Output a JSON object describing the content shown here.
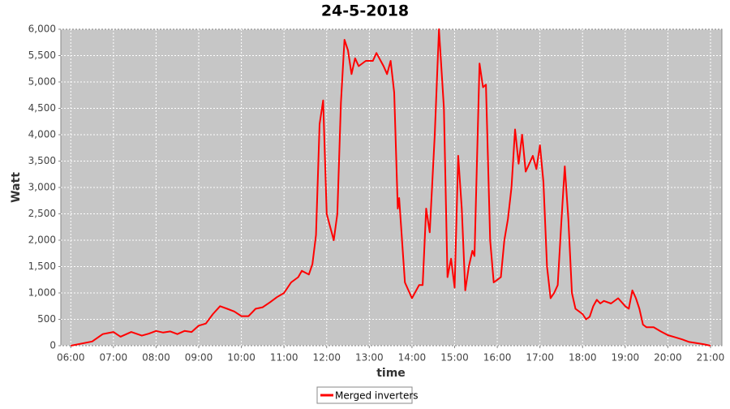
{
  "chart_data": {
    "type": "line",
    "title": "24-5-2018",
    "x_label": "time",
    "y_label": "Watt",
    "x": [
      "06:00",
      "06:30",
      "06:45",
      "07:00",
      "07:10",
      "07:25",
      "07:40",
      "07:50",
      "08:00",
      "08:10",
      "08:20",
      "08:30",
      "08:40",
      "08:50",
      "09:00",
      "09:10",
      "09:20",
      "09:30",
      "09:40",
      "09:50",
      "10:00",
      "10:10",
      "10:20",
      "10:30",
      "10:40",
      "10:50",
      "11:00",
      "11:10",
      "11:20",
      "11:25",
      "11:35",
      "11:40",
      "11:45",
      "11:50",
      "11:55",
      "12:00",
      "12:05",
      "12:10",
      "12:15",
      "12:20",
      "12:25",
      "12:30",
      "12:35",
      "12:40",
      "12:45",
      "12:55",
      "13:05",
      "13:10",
      "13:20",
      "13:25",
      "13:30",
      "13:35",
      "13:40",
      "13:42",
      "13:50",
      "14:00",
      "14:10",
      "14:15",
      "14:20",
      "14:25",
      "14:32",
      "14:38",
      "14:45",
      "14:50",
      "14:55",
      "15:00",
      "15:05",
      "15:10",
      "15:15",
      "15:20",
      "15:25",
      "15:28",
      "15:35",
      "15:40",
      "15:44",
      "15:50",
      "15:55",
      "16:00",
      "16:05",
      "16:10",
      "16:15",
      "16:20",
      "16:25",
      "16:30",
      "16:35",
      "16:40",
      "16:45",
      "16:50",
      "16:55",
      "17:00",
      "17:05",
      "17:10",
      "17:15",
      "17:20",
      "17:25",
      "17:30",
      "17:35",
      "17:40",
      "17:45",
      "17:50",
      "18:00",
      "18:05",
      "18:10",
      "18:15",
      "18:20",
      "18:25",
      "18:30",
      "18:40",
      "18:50",
      "19:00",
      "19:05",
      "19:10",
      "19:15",
      "19:20",
      "19:25",
      "19:30",
      "19:40",
      "19:50",
      "20:00",
      "20:10",
      "20:20",
      "20:30",
      "20:40",
      "20:50",
      "21:00"
    ],
    "series": [
      {
        "name": "Merged inverters",
        "color": "#ff0000",
        "values": [
          0,
          80,
          220,
          260,
          170,
          260,
          190,
          230,
          280,
          250,
          270,
          220,
          280,
          260,
          380,
          420,
          600,
          750,
          700,
          650,
          560,
          560,
          700,
          730,
          820,
          920,
          1000,
          1200,
          1300,
          1420,
          1350,
          1550,
          2100,
          4200,
          4650,
          2500,
          2250,
          2000,
          2500,
          4600,
          5800,
          5600,
          5150,
          5450,
          5300,
          5400,
          5400,
          5550,
          5300,
          5150,
          5400,
          4800,
          2600,
          2800,
          1200,
          900,
          1150,
          1150,
          2600,
          2150,
          4000,
          6000,
          4500,
          1300,
          1650,
          1100,
          3600,
          2600,
          1050,
          1500,
          1800,
          1700,
          5350,
          4900,
          4950,
          2000,
          1200,
          1250,
          1300,
          2000,
          2400,
          3000,
          4100,
          3450,
          4000,
          3300,
          3450,
          3600,
          3350,
          3800,
          3100,
          1500,
          900,
          1000,
          1150,
          2300,
          3400,
          2400,
          1000,
          700,
          600,
          500,
          550,
          750,
          870,
          800,
          850,
          800,
          900,
          750,
          700,
          1050,
          900,
          700,
          400,
          350,
          350,
          270,
          200,
          160,
          120,
          70,
          50,
          30,
          0
        ]
      }
    ],
    "xlim": [
      "05:46",
      "21:16"
    ],
    "xticks": [
      "06:00",
      "07:00",
      "08:00",
      "09:00",
      "10:00",
      "11:00",
      "12:00",
      "13:00",
      "14:00",
      "15:00",
      "16:00",
      "17:00",
      "18:00",
      "19:00",
      "20:00",
      "21:00"
    ],
    "ylim": [
      0,
      6000
    ],
    "yticks": [
      0,
      500,
      {
        "value": 1000,
        "label": "1,000"
      },
      {
        "value": 1500,
        "label": "1,500"
      },
      {
        "value": 2000,
        "label": "2,000"
      },
      {
        "value": 2500,
        "label": "2,500"
      },
      {
        "value": 3000,
        "label": "3,000"
      },
      {
        "value": 3500,
        "label": "3,500"
      },
      {
        "value": 4000,
        "label": "4,000"
      },
      {
        "value": 4500,
        "label": "4,500"
      },
      {
        "value": 5000,
        "label": "5,000"
      },
      {
        "value": 5500,
        "label": "5,500"
      },
      {
        "value": 6000,
        "label": "6,000"
      }
    ],
    "grid": true
  }
}
